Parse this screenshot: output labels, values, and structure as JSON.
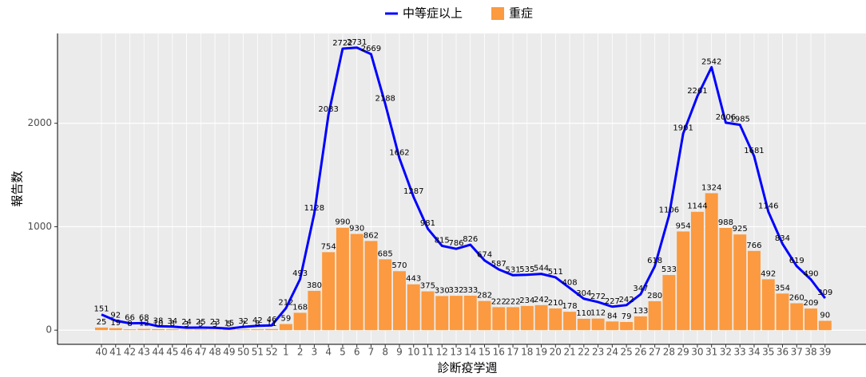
{
  "chart_data": {
    "type": "bar-line",
    "x_label": "診断疫学週",
    "y_label": "報告数",
    "categories": [
      "40",
      "41",
      "42",
      "43",
      "44",
      "45",
      "46",
      "47",
      "48",
      "49",
      "50",
      "51",
      "52",
      "1",
      "2",
      "3",
      "4",
      "5",
      "6",
      "7",
      "8",
      "9",
      "10",
      "11",
      "12",
      "13",
      "14",
      "15",
      "16",
      "17",
      "18",
      "19",
      "20",
      "21",
      "22",
      "23",
      "24",
      "25",
      "26",
      "27",
      "28",
      "29",
      "30",
      "31",
      "32",
      "33",
      "34",
      "35",
      "36",
      "37",
      "38",
      "39"
    ],
    "series": [
      {
        "name": "中等症以上",
        "type": "line",
        "color": "#0000ff",
        "values": [
          151,
          92,
          66,
          68,
          38,
          34,
          24,
          25,
          23,
          15,
          32,
          42,
          46,
          212,
          493,
          1128,
          2083,
          2722,
          2731,
          2669,
          2188,
          1662,
          1287,
          981,
          815,
          786,
          826,
          674,
          587,
          531,
          535,
          544,
          511,
          408,
          304,
          272,
          227,
          242,
          347,
          618,
          1106,
          1901,
          2261,
          2542,
          2006,
          1985,
          1681,
          1146,
          834,
          619,
          490,
          309
        ]
      },
      {
        "name": "重症",
        "type": "bar",
        "color": "#fb9a40",
        "values": [
          25,
          19,
          8,
          12,
          10,
          8,
          3,
          5,
          3,
          5,
          7,
          8,
          11,
          59,
          168,
          380,
          754,
          990,
          930,
          862,
          685,
          570,
          443,
          375,
          330,
          332,
          333,
          282,
          222,
          222,
          234,
          242,
          210,
          178,
          110,
          112,
          84,
          79,
          133,
          280,
          533,
          954,
          1144,
          1324,
          988,
          925,
          766,
          492,
          354,
          260,
          209,
          90
        ]
      }
    ],
    "ylim": [
      -137,
      2868
    ],
    "yticks": [
      0,
      1000,
      2000
    ],
    "grid": true,
    "legend": "top"
  }
}
